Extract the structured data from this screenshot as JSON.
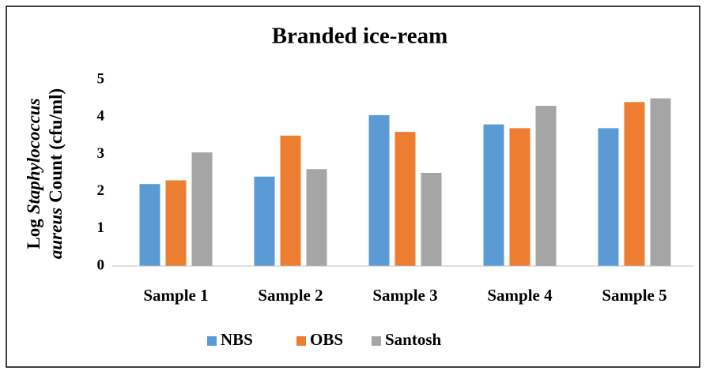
{
  "chart_data": {
    "type": "bar",
    "title": "Branded ice-ream",
    "ylabel": [
      [
        "Log",
        "Staphylococcus"
      ],
      [
        "aureus",
        "Count (cfu/ml)"
      ]
    ],
    "categories": [
      "Sample 1",
      "Sample 2",
      "Sample 3",
      "Sample 4",
      "Sample 5"
    ],
    "series": [
      {
        "name": "NBS",
        "color": "#5b9bd5",
        "values": [
          2.2,
          2.4,
          4.05,
          3.8,
          3.7
        ]
      },
      {
        "name": "OBS",
        "color": "#ed7d31",
        "values": [
          2.3,
          3.5,
          3.6,
          3.7,
          4.4
        ]
      },
      {
        "name": "Santosh",
        "color": "#a5a5a5",
        "values": [
          3.05,
          2.6,
          2.5,
          4.3,
          4.5
        ]
      }
    ],
    "ylim": [
      0,
      5
    ],
    "yticks": [
      0,
      1,
      2,
      3,
      4,
      5
    ],
    "grid": false,
    "legend": "bottom"
  }
}
